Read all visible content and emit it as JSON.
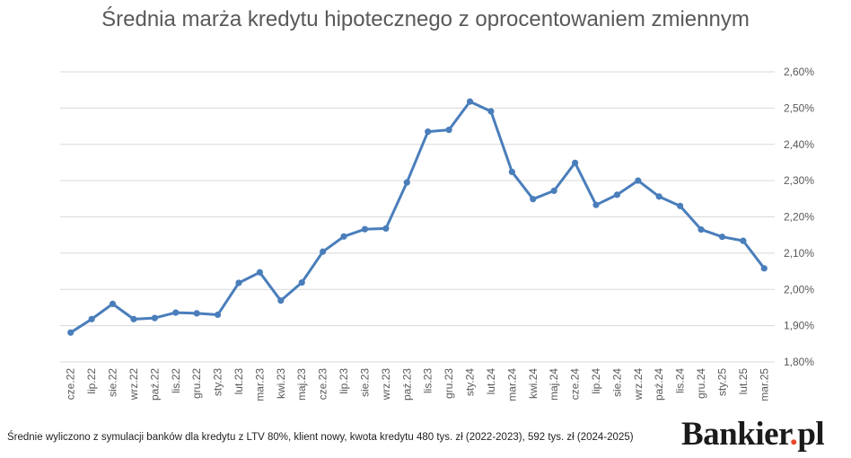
{
  "chart_data": {
    "type": "line",
    "title": "Średnia marża kredytu hipotecznego z oprocentowaniem zmiennym",
    "categories": [
      "cze.22",
      "lip.22",
      "sie.22",
      "wrz.22",
      "paź.22",
      "lis.22",
      "gru.22",
      "sty.23",
      "lut.23",
      "mar.23",
      "kwi.23",
      "maj.23",
      "cze.23",
      "lip.23",
      "sie.23",
      "wrz.23",
      "paź.23",
      "lis.23",
      "gru.23",
      "sty.24",
      "lut.24",
      "mar.24",
      "kwi.24",
      "maj.24",
      "cze.24",
      "lip.24",
      "sie.24",
      "wrz.24",
      "paź.24",
      "lis.24",
      "gru.24",
      "sty.25",
      "lut.25",
      "mar.25"
    ],
    "values": [
      1.881,
      1.918,
      1.96,
      1.918,
      1.921,
      1.936,
      1.934,
      1.93,
      2.018,
      2.047,
      1.969,
      2.019,
      2.104,
      2.146,
      2.166,
      2.168,
      2.295,
      2.435,
      2.44,
      2.518,
      2.491,
      2.324,
      2.249,
      2.272,
      2.349,
      2.233,
      2.261,
      2.3,
      2.256,
      2.23,
      2.165,
      2.145,
      2.134,
      2.058
    ],
    "ylim": [
      1.8,
      2.6
    ],
    "yticks": [
      1.8,
      1.9,
      2.0,
      2.1,
      2.2,
      2.3,
      2.4,
      2.5,
      2.6
    ],
    "ytick_labels": [
      "1,80%",
      "1,90%",
      "2,00%",
      "2,10%",
      "2,20%",
      "2,30%",
      "2,40%",
      "2,50%",
      "2,60%"
    ],
    "xlabel": "",
    "ylabel": "",
    "grid": true,
    "line_color": "#4a7ebb",
    "grid_color": "#d9d9d9"
  },
  "footnote": "Średnie wyliczono z symulacji banków dla kredytu z LTV 80%, klient nowy, kwota kredytu 480 tys. zł (2022-2023), 592 tys. zł (2024-2025)",
  "logo": {
    "text": "Bankier",
    "dot": ".",
    "suffix": "pl",
    "dot_color": "#e8492c"
  }
}
